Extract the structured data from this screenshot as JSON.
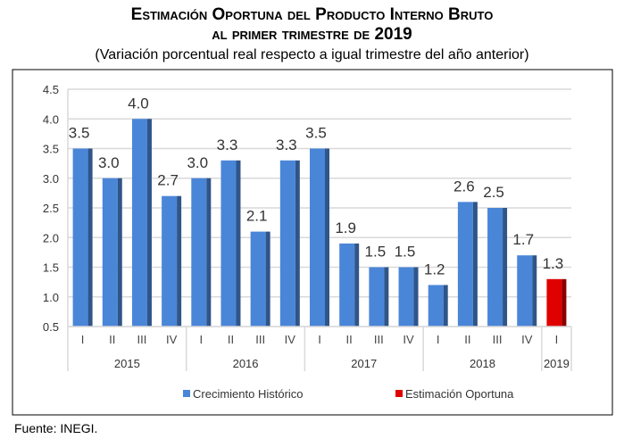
{
  "chart_data": {
    "type": "bar",
    "title": "Estimación Oportuna del Producto Interno Bruto",
    "title_line2": "al primer trimestre de 2019",
    "subtitle": "(Variación porcentual real respecto a igual trimestre del año anterior)",
    "source": "Fuente: INEGI.",
    "ylim": [
      0.5,
      4.5
    ],
    "yticks": [
      "0.5",
      "1.0",
      "1.5",
      "2.0",
      "2.5",
      "3.0",
      "3.5",
      "4.0",
      "4.5"
    ],
    "grid": true,
    "legend_position": "bottom",
    "groups": [
      {
        "year": "2015",
        "quarters": [
          "I",
          "II",
          "III",
          "IV"
        ]
      },
      {
        "year": "2016",
        "quarters": [
          "I",
          "II",
          "III",
          "IV"
        ]
      },
      {
        "year": "2017",
        "quarters": [
          "I",
          "II",
          "III",
          "IV"
        ]
      },
      {
        "year": "2018",
        "quarters": [
          "I",
          "II",
          "III",
          "IV"
        ]
      },
      {
        "year": "2019",
        "quarters": [
          "I"
        ]
      }
    ],
    "series": [
      {
        "name": "Crecimiento  Histórico",
        "color": "#4a86d8",
        "side_color": "#2f5589",
        "values": [
          3.5,
          3.0,
          4.0,
          2.7,
          3.0,
          3.3,
          2.1,
          3.3,
          3.5,
          1.9,
          1.5,
          1.5,
          1.2,
          2.6,
          2.5,
          1.7,
          null
        ],
        "labels": [
          "3.5",
          "3.0",
          "4.0",
          "2.7",
          "3.0",
          "3.3",
          "2.1",
          "3.3",
          "3.5",
          "1.9",
          "1.5",
          "1.5",
          "1.2",
          "2.6",
          "2.5",
          "1.7",
          null
        ]
      },
      {
        "name": "Estimación Oportuna",
        "color": "#e00000",
        "side_color": "#8a0000",
        "values": [
          null,
          null,
          null,
          null,
          null,
          null,
          null,
          null,
          null,
          null,
          null,
          null,
          null,
          null,
          null,
          null,
          1.3
        ],
        "labels": [
          null,
          null,
          null,
          null,
          null,
          null,
          null,
          null,
          null,
          null,
          null,
          null,
          null,
          null,
          null,
          null,
          "1.3"
        ]
      }
    ]
  }
}
